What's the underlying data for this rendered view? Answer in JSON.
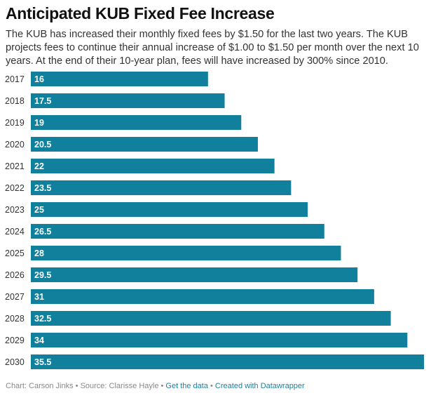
{
  "title": "Anticipated KUB Fixed Fee Increase",
  "description": "The KUB has increased their monthly fixed fees by $1.50 for the last two years. The KUB projects fees to continue their annual increase of $1.00 to $1.50 per month over the next 10 years. At the end of their 10-year plan, fees will have increased by 300% since 2010.",
  "footer": {
    "chart_credit": "Chart: Carson Jinks",
    "separator": " • ",
    "source": "Source: Clarisse Hayle",
    "get_data": "Get the data",
    "created_with": "Created with Datawrapper"
  },
  "colors": {
    "bar": "#10809d",
    "bar_label": "#ffffff",
    "link": "#1d81a2"
  },
  "chart_data": {
    "type": "bar",
    "orientation": "horizontal",
    "categories": [
      "2017",
      "2018",
      "2019",
      "2020",
      "2021",
      "2022",
      "2023",
      "2024",
      "2025",
      "2026",
      "2027",
      "2028",
      "2029",
      "2030"
    ],
    "values": [
      16,
      17.5,
      19,
      20.5,
      22,
      23.5,
      25,
      26.5,
      28,
      29.5,
      31,
      32.5,
      34,
      35.5
    ],
    "value_labels": [
      "16",
      "17.5",
      "19",
      "20.5",
      "22",
      "23.5",
      "25",
      "26.5",
      "28",
      "29.5",
      "31",
      "32.5",
      "34",
      "35.5"
    ],
    "xlim": [
      0,
      35.5
    ],
    "grid": false,
    "legend": "none"
  }
}
